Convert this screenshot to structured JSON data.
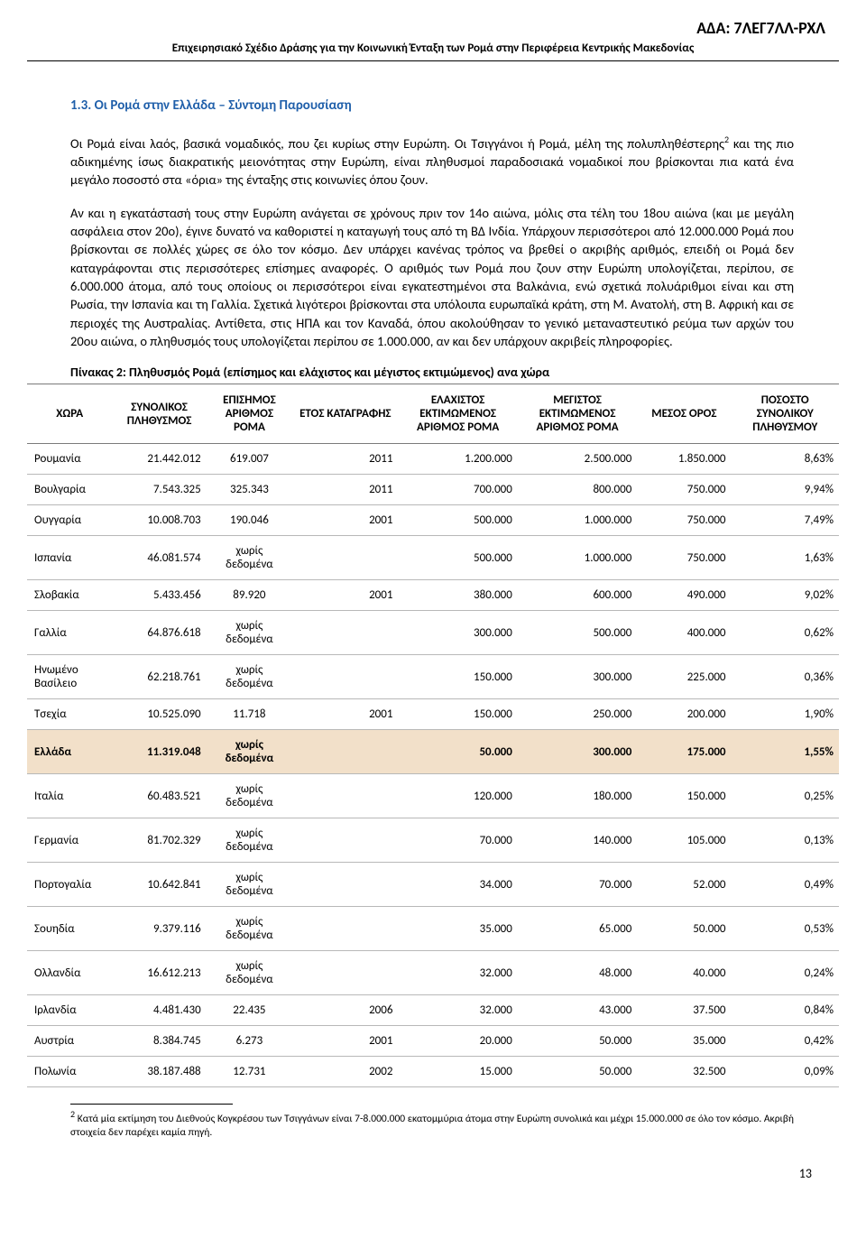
{
  "ada": "ΑΔΑ: 7ΛΕΓ7ΛΛ-ΡΧΛ",
  "docHeader": "Επιχειρησιακό Σχέδιο Δράσης για την Κοινωνική Ένταξη των Ρομά στην Περιφέρεια Κεντρικής Μακεδονίας",
  "sectionTitle": "1.3.  Οι Ρομά στην Ελλάδα – Σύντομη Παρουσίαση",
  "para1a": "Οι Ρομά  είναι λαός, βασικά νομαδικός, που ζει κυρίως στην Ευρώπη. Οι Τσιγγάνοι ή Ρομά, μέλη της πολυπληθέστερης",
  "para1b": " και της πιο αδικημένης ίσως διακρατικής μειονότητας στην Ευρώπη, είναι πληθυσμοί παραδοσιακά νομαδικοί που βρίσκονται πια κατά ένα μεγάλο ποσοστό στα «όρια» της ένταξης στις κοινωνίες όπου ζουν.",
  "para2": "Αν και η εγκατάστασή τους στην Ευρώπη ανάγεται σε χρόνους πριν τον 14ο αιώνα, μόλις στα τέλη του 18ου αιώνα (και με μεγάλη ασφάλεια στον 20ο), έγινε δυνατό να καθοριστεί η καταγωγή τους από τη ΒΔ Ινδία. Υπάρχουν περισσότεροι από 12.000.000 Ρομά που βρίσκονται σε πολλές χώρες σε όλο τον κόσμο. Δεν υπάρχει κανένας τρόπος να βρεθεί ο ακριβής αριθμός, επειδή οι Ρομά δεν καταγράφονται στις περισσότερες επίσημες αναφορές. Ο αριθμός των Ρομά που ζουν στην Ευρώπη υπολογίζεται, περίπου, σε 6.000.000 άτομα, από τους οποίους οι περισσότεροι είναι εγκατεστημένοι στα Βαλκάνια, ενώ σχετικά πολυάριθμοι είναι και στη Ρωσία, την Ισπανία και τη Γαλλία. Σχετικά λιγότεροι βρίσκονται στα υπόλοιπα ευρωπαϊκά κράτη, στη Μ. Ανατολή, στη Β. Αφρική και σε περιοχές της Αυστραλίας. Αντίθετα, στις ΗΠΑ και τον Καναδά, όπου ακολούθησαν το γενικό μεταναστευτικό ρεύμα των αρχών του 20ου αιώνα, ο πληθυσμός τους υπολογίζεται περίπου σε 1.000.000, αν και δεν υπάρχουν ακριβείς πληροφορίες.",
  "tableCaption": "Πίνακας 2: Πληθυσμός Ρομά (επίσημος και ελάχιστος και μέγιστος εκτιμώμενος) ανα χώρα",
  "table": {
    "columns": [
      "ΧΩΡΑ",
      "ΣΥΝΟΛΙΚΟΣ ΠΛΗΘΥΣΜΟΣ",
      "ΕΠΙΣΗΜΟΣ ΑΡΙΘΜΟΣ ΡΟΜΑ",
      "ΕΤΟΣ ΚΑΤΑΓΡΑΦΗΣ",
      "ΕΛΑΧΙΣΤΟΣ ΕΚΤΙΜΩΜΕΝΟΣ ΑΡΙΘΜΟΣ ΡΟΜΑ",
      "ΜΕΓΙΣΤΟΣ ΕΚΤΙΜΩΜΕΝΟΣ ΑΡΙΘΜΟΣ ΡΟΜΑ",
      "ΜΕΣΟΣ ΟΡΟΣ",
      "ΠΟΣΟΣΤΟ ΣΥΝΟΛΙΚΟΥ ΠΛΗΘΥΣΜΟΥ"
    ],
    "colWidths": [
      "87px",
      "96px",
      "88px",
      "108px",
      "122px",
      "122px",
      "96px",
      "110px"
    ],
    "rows": [
      {
        "c": [
          "Ρουμανία",
          "21.442.012",
          "619.007",
          "2011",
          "1.200.000",
          "2.500.000",
          "1.850.000",
          "8,63%"
        ],
        "hl": false
      },
      {
        "c": [
          "Βουλγαρία",
          "7.543.325",
          "325.343",
          "2011",
          "700.000",
          "800.000",
          "750.000",
          "9,94%"
        ],
        "hl": false
      },
      {
        "c": [
          "Ουγγαρία",
          "10.008.703",
          "190.046",
          "2001",
          "500.000",
          "1.000.000",
          "750.000",
          "7,49%"
        ],
        "hl": false
      },
      {
        "c": [
          "Ισπανία",
          "46.081.574",
          "χωρίς δεδομένα",
          "",
          "500.000",
          "1.000.000",
          "750.000",
          "1,63%"
        ],
        "hl": false
      },
      {
        "c": [
          "Σλοβακία",
          "5.433.456",
          "89.920",
          "2001",
          "380.000",
          "600.000",
          "490.000",
          "9,02%"
        ],
        "hl": false
      },
      {
        "c": [
          "Γαλλία",
          "64.876.618",
          "χωρίς δεδομένα",
          "",
          "300.000",
          "500.000",
          "400.000",
          "0,62%"
        ],
        "hl": false
      },
      {
        "c": [
          "Ηνωμένο Βασίλειο",
          "62.218.761",
          "χωρίς δεδομένα",
          "",
          "150.000",
          "300.000",
          "225.000",
          "0,36%"
        ],
        "hl": false
      },
      {
        "c": [
          "Τσεχία",
          "10.525.090",
          "11.718",
          "2001",
          "150.000",
          "250.000",
          "200.000",
          "1,90%"
        ],
        "hl": false
      },
      {
        "c": [
          "Ελλάδα",
          "11.319.048",
          "χωρίς δεδομένα",
          "",
          "50.000",
          "300.000",
          "175.000",
          "1,55%"
        ],
        "hl": true
      },
      {
        "c": [
          "Ιταλία",
          "60.483.521",
          "χωρίς δεδομένα",
          "",
          "120.000",
          "180.000",
          "150.000",
          "0,25%"
        ],
        "hl": false
      },
      {
        "c": [
          "Γερμανία",
          "81.702.329",
          "χωρίς δεδομένα",
          "",
          "70.000",
          "140.000",
          "105.000",
          "0,13%"
        ],
        "hl": false
      },
      {
        "c": [
          "Πορτογαλία",
          "10.642.841",
          "χωρίς δεδομένα",
          "",
          "34.000",
          "70.000",
          "52.000",
          "0,49%"
        ],
        "hl": false
      },
      {
        "c": [
          "Σουηδία",
          "9.379.116",
          "χωρίς δεδομένα",
          "",
          "35.000",
          "65.000",
          "50.000",
          "0,53%"
        ],
        "hl": false
      },
      {
        "c": [
          "Ολλανδία",
          "16.612.213",
          "χωρίς δεδομένα",
          "",
          "32.000",
          "48.000",
          "40.000",
          "0,24%"
        ],
        "hl": false
      },
      {
        "c": [
          "Ιρλανδία",
          "4.481.430",
          "22.435",
          "2006",
          "32.000",
          "43.000",
          "37.500",
          "0,84%"
        ],
        "hl": false
      },
      {
        "c": [
          "Αυστρία",
          "8.384.745",
          "6.273",
          "2001",
          "20.000",
          "50.000",
          "35.000",
          "0,42%"
        ],
        "hl": false
      },
      {
        "c": [
          "Πολωνία",
          "38.187.488",
          "12.731",
          "2002",
          "15.000",
          "50.000",
          "32.500",
          "0,09%"
        ],
        "hl": false
      }
    ]
  },
  "footnoteNum": "2",
  "footnote": " Κατά μία εκτίμηση του Διεθνούς Κογκρέσου των Τσιγγάνων είναι 7-8.000.000 εκατομμύρια άτομα στην Ευρώπη συνολικά και μέχρι 15.000.000 σε όλο τον κόσμο. Ακριβή στοιχεία δεν παρέχει καμία πηγή.",
  "pageNum": "13"
}
